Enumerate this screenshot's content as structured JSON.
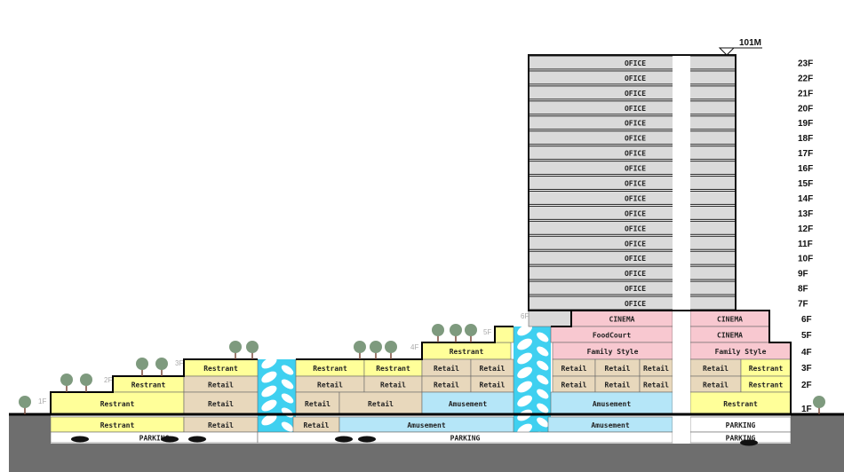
{
  "palette": {
    "restaurant": "#ffff99",
    "retail": "#e8d8bc",
    "amusement": "#b5e6f8",
    "entertainment": "#f8c8d0",
    "office": "#dadada",
    "parking": "#ffffff",
    "atrium": "#3fd0f0",
    "ground": "#6e6e6e"
  },
  "height_marker": "101M",
  "tower": {
    "floor_label": "OFICE",
    "floors": [
      "23F",
      "22F",
      "21F",
      "20F",
      "19F",
      "18F",
      "17F",
      "16F",
      "15F",
      "14F",
      "13F",
      "12F",
      "11F",
      "10F",
      "9F",
      "8F",
      "7F"
    ]
  },
  "podium_floor_labels": [
    "6F",
    "5F",
    "4F",
    "3F",
    "2F",
    "1F"
  ],
  "terrace_labels": [
    "1F",
    "2F",
    "3F",
    "4F",
    "5F",
    "6F"
  ],
  "spaces": [
    {
      "label": "CINEMA",
      "use": "entertainment"
    },
    {
      "label": "CINEMA",
      "use": "entertainment"
    },
    {
      "label": "FoodCourt",
      "use": "entertainment"
    },
    {
      "label": "CINEMA",
      "use": "entertainment"
    },
    {
      "label": "Family Style",
      "use": "entertainment"
    },
    {
      "label": "Family Style",
      "use": "entertainment"
    },
    {
      "label": "Retail",
      "use": "retail"
    },
    {
      "label": "Retail",
      "use": "retail"
    },
    {
      "label": "Retail",
      "use": "retail"
    },
    {
      "label": "Retail",
      "use": "retail"
    },
    {
      "label": "Restrant",
      "use": "restaurant"
    },
    {
      "label": "Retail",
      "use": "retail"
    },
    {
      "label": "Retail",
      "use": "retail"
    },
    {
      "label": "Retail",
      "use": "retail"
    },
    {
      "label": "Retail",
      "use": "retail"
    },
    {
      "label": "Restrant",
      "use": "restaurant"
    },
    {
      "label": "Amusement",
      "use": "amusement"
    },
    {
      "label": "Restrant",
      "use": "restaurant"
    },
    {
      "label": "Amusement",
      "use": "amusement"
    },
    {
      "label": "PARKING",
      "use": "parking"
    },
    {
      "label": "Restrant",
      "use": "restaurant"
    },
    {
      "label": "",
      "use": "restaurant"
    },
    {
      "label": "Restrant",
      "use": "restaurant"
    },
    {
      "label": "Restrant",
      "use": "restaurant"
    },
    {
      "label": "Restrant",
      "use": "restaurant"
    },
    {
      "label": "Retail",
      "use": "retail"
    },
    {
      "label": "Retail",
      "use": "retail"
    },
    {
      "label": "Restrant",
      "use": "restaurant"
    },
    {
      "label": "Retail",
      "use": "retail"
    },
    {
      "label": "Retail",
      "use": "retail"
    },
    {
      "label": "Retail",
      "use": "retail"
    },
    {
      "label": "Retail",
      "use": "retail"
    },
    {
      "label": "Retail",
      "use": "retail"
    },
    {
      "label": "Restrant",
      "use": "restaurant"
    },
    {
      "label": "Retail",
      "use": "retail"
    },
    {
      "label": "Retail",
      "use": "retail"
    },
    {
      "label": "Retail",
      "use": "retail"
    },
    {
      "label": "Amusement",
      "use": "amusement"
    },
    {
      "label": "Restrant",
      "use": "restaurant"
    },
    {
      "label": "Retail",
      "use": "retail"
    },
    {
      "label": "Retail",
      "use": "retail"
    },
    {
      "label": "Amusement",
      "use": "amusement"
    },
    {
      "label": "PARKING",
      "use": "parking"
    },
    {
      "label": "PARKING",
      "use": "parking"
    },
    {
      "label": "PARKING",
      "use": "parking"
    },
    {
      "label": "",
      "use": "office"
    }
  ]
}
